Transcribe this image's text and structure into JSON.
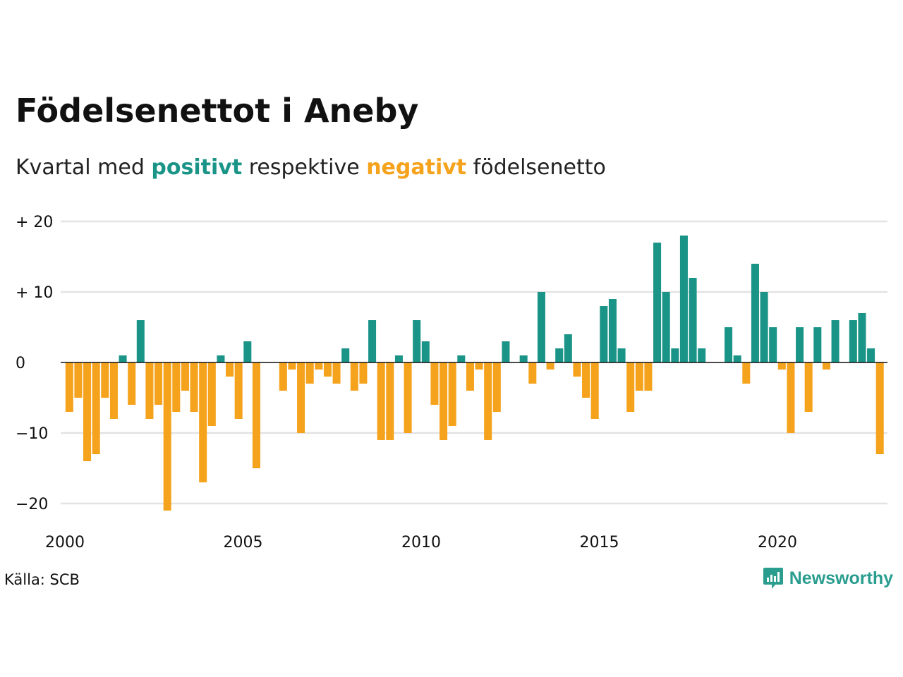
{
  "title": "Födelsenettot i Aneby",
  "subtitle": {
    "prefix": "Kvartal med ",
    "positive_word": "positivt",
    "middle": " respektive ",
    "negative_word": "negativt",
    "suffix": " födelsenetto"
  },
  "source": "Källa: SCB",
  "brand": "Newsworthy",
  "colors": {
    "positive": "#1b9488",
    "negative": "#f5a21c",
    "grid": "#e3e3e3",
    "zero_line": "#111111"
  },
  "chart_data": {
    "type": "bar",
    "title": "Födelsenettot i Aneby",
    "xlabel": "",
    "ylabel": "",
    "xlim": [
      2000,
      2023.25
    ],
    "ylim": [
      -22,
      20
    ],
    "y_ticks": [
      {
        "value": 20,
        "label": "+ 20"
      },
      {
        "value": 10,
        "label": "+ 10"
      },
      {
        "value": 0,
        "label": "0"
      },
      {
        "value": -10,
        "label": "−10"
      },
      {
        "value": -20,
        "label": "−20"
      }
    ],
    "x_ticks": [
      "2000",
      "2005",
      "2010",
      "2015",
      "2020"
    ],
    "grid": true,
    "start_period": "2000 Q1",
    "frequency": "quarterly",
    "quarters": [
      "2000 Q1",
      "2000 Q2",
      "2000 Q3",
      "2000 Q4",
      "2001 Q1",
      "2001 Q2",
      "2001 Q3",
      "2001 Q4",
      "2002 Q1",
      "2002 Q2",
      "2002 Q3",
      "2002 Q4",
      "2003 Q1",
      "2003 Q2",
      "2003 Q3",
      "2003 Q4",
      "2004 Q1",
      "2004 Q2",
      "2004 Q3",
      "2004 Q4",
      "2005 Q1",
      "2005 Q2",
      "2005 Q3",
      "2005 Q4",
      "2006 Q1",
      "2006 Q2",
      "2006 Q3",
      "2006 Q4",
      "2007 Q1",
      "2007 Q2",
      "2007 Q3",
      "2007 Q4",
      "2008 Q1",
      "2008 Q2",
      "2008 Q3",
      "2008 Q4",
      "2009 Q1",
      "2009 Q2",
      "2009 Q3",
      "2009 Q4",
      "2010 Q1",
      "2010 Q2",
      "2010 Q3",
      "2010 Q4",
      "2011 Q1",
      "2011 Q2",
      "2011 Q3",
      "2011 Q4",
      "2012 Q1",
      "2012 Q2",
      "2012 Q3",
      "2012 Q4",
      "2013 Q1",
      "2013 Q2",
      "2013 Q3",
      "2013 Q4",
      "2014 Q1",
      "2014 Q2",
      "2014 Q3",
      "2014 Q4",
      "2015 Q1",
      "2015 Q2",
      "2015 Q3",
      "2015 Q4",
      "2016 Q1",
      "2016 Q2",
      "2016 Q3",
      "2016 Q4",
      "2017 Q1",
      "2017 Q2",
      "2017 Q3",
      "2017 Q4",
      "2018 Q1",
      "2018 Q2",
      "2018 Q3",
      "2018 Q4",
      "2019 Q1",
      "2019 Q2",
      "2019 Q3",
      "2019 Q4",
      "2020 Q1",
      "2020 Q2",
      "2020 Q3",
      "2020 Q4",
      "2021 Q1",
      "2021 Q2",
      "2021 Q3",
      "2021 Q4",
      "2022 Q1",
      "2022 Q2",
      "2022 Q3",
      "2022 Q4",
      "2023 Q1"
    ],
    "values": [
      -7,
      -5,
      -14,
      -13,
      -5,
      -8,
      1,
      -6,
      6,
      -8,
      -6,
      -21,
      -7,
      -4,
      -7,
      -17,
      -9,
      1,
      -2,
      -8,
      3,
      -15,
      0,
      0,
      -4,
      -1,
      -10,
      -3,
      -1,
      -2,
      -3,
      2,
      -4,
      -3,
      6,
      -11,
      -11,
      1,
      -10,
      6,
      3,
      -6,
      -11,
      -9,
      1,
      -4,
      -1,
      -11,
      -7,
      3,
      0,
      1,
      -3,
      10,
      -1,
      2,
      4,
      -2,
      -5,
      -8,
      8,
      9,
      2,
      -7,
      -4,
      -4,
      17,
      10,
      2,
      18,
      12,
      2,
      0,
      0,
      5,
      1,
      -3,
      14,
      10,
      5,
      -1,
      -10,
      5,
      -7,
      5,
      -1,
      6,
      0,
      6,
      7,
      2,
      -13,
      0
    ]
  }
}
